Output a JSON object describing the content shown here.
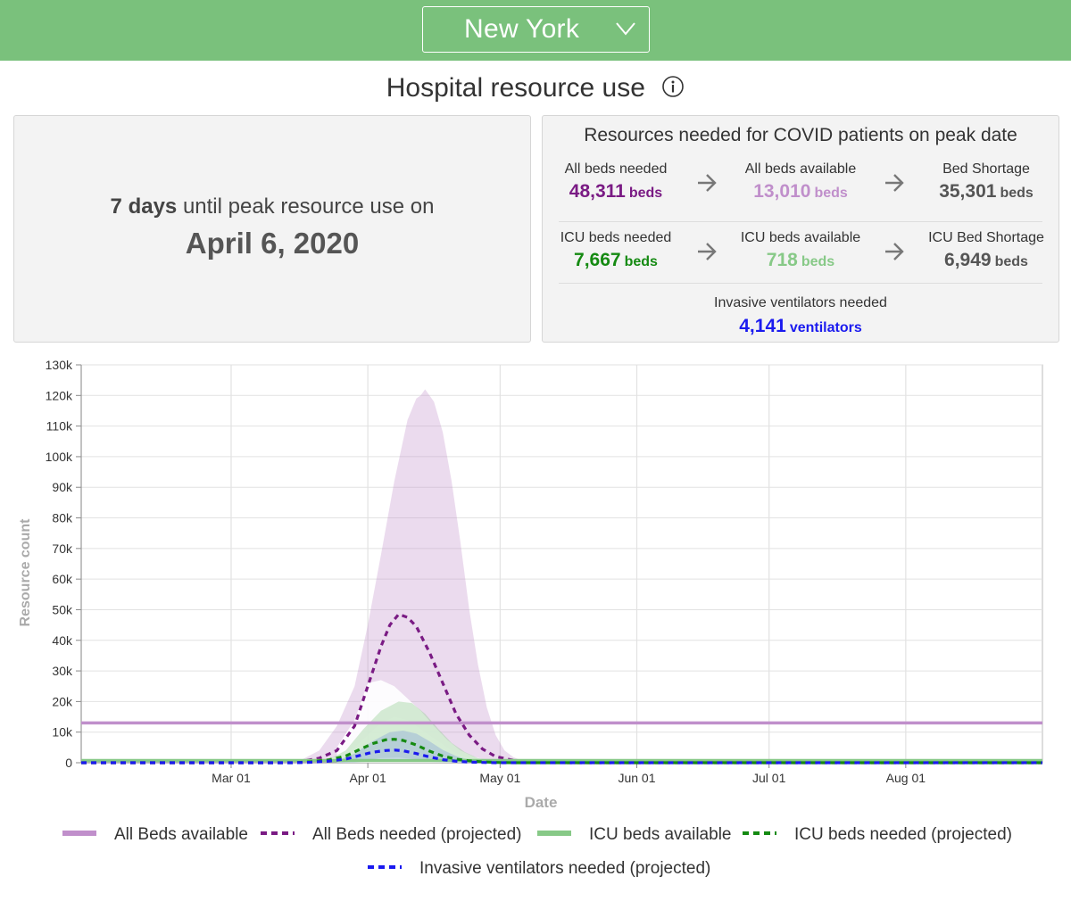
{
  "header": {
    "state": "New York",
    "section_title": "Hospital resource use"
  },
  "peak": {
    "days_count": "7 days",
    "days_suffix": "until peak resource use on",
    "date": "April 6, 2020"
  },
  "resources": {
    "title": "Resources needed for COVID patients on peak date",
    "all_beds_needed": {
      "label": "All beds needed",
      "value": "48,311",
      "unit": "beds"
    },
    "all_beds_available": {
      "label": "All beds available",
      "value": "13,010",
      "unit": "beds"
    },
    "bed_shortage": {
      "label": "Bed Shortage",
      "value": "35,301",
      "unit": "beds"
    },
    "icu_beds_needed": {
      "label": "ICU beds needed",
      "value": "7,667",
      "unit": "beds"
    },
    "icu_beds_available": {
      "label": "ICU beds available",
      "value": "718",
      "unit": "beds"
    },
    "icu_bed_shortage": {
      "label": "ICU Bed Shortage",
      "value": "6,949",
      "unit": "beds"
    },
    "ventilators": {
      "label": "Invasive ventilators needed",
      "value": "4,141",
      "unit": "ventilators"
    }
  },
  "colors": {
    "header_green": "#7ac17c",
    "all_beds_needed": "#7a1b84",
    "all_beds_available": "#c08fcb",
    "icu_needed": "#158a12",
    "icu_available": "#87c987",
    "ventilators": "#1a1aef"
  },
  "chart_data": {
    "type": "line",
    "title": "",
    "xlabel": "Date",
    "ylabel": "Resource count",
    "x_range_days": [
      -34,
      184
    ],
    "x_ticks": [
      {
        "label": "Mar 01",
        "day": 0
      },
      {
        "label": "Apr 01",
        "day": 31
      },
      {
        "label": "May 01",
        "day": 61
      },
      {
        "label": "Jun 01",
        "day": 92
      },
      {
        "label": "Jul 01",
        "day": 122
      },
      {
        "label": "Aug 01",
        "day": 153
      }
    ],
    "ylim": [
      0,
      130000
    ],
    "y_ticks": [
      {
        "value": 0,
        "label": "0"
      },
      {
        "value": 10000,
        "label": "10k"
      },
      {
        "value": 20000,
        "label": "20k"
      },
      {
        "value": 30000,
        "label": "30k"
      },
      {
        "value": 40000,
        "label": "40k"
      },
      {
        "value": 50000,
        "label": "50k"
      },
      {
        "value": 60000,
        "label": "60k"
      },
      {
        "value": 70000,
        "label": "70k"
      },
      {
        "value": 80000,
        "label": "80k"
      },
      {
        "value": 90000,
        "label": "90k"
      },
      {
        "value": 100000,
        "label": "100k"
      },
      {
        "value": 110000,
        "label": "110k"
      },
      {
        "value": 120000,
        "label": "120k"
      },
      {
        "value": 130000,
        "label": "130k"
      }
    ],
    "grid": true,
    "series": [
      {
        "name": "All Beds available",
        "style": "solid",
        "color": "#c08fcb",
        "x": [
          -34,
          184
        ],
        "y": [
          13010,
          13010
        ]
      },
      {
        "name": "All Beds needed (projected)",
        "style": "dashed",
        "color": "#7a1b84",
        "x": [
          -34,
          12,
          16,
          20,
          24,
          28,
          31,
          34,
          36,
          38,
          40,
          42,
          45,
          48,
          51,
          54,
          57,
          60,
          64,
          68,
          72,
          76,
          184
        ],
        "y": [
          0,
          0,
          500,
          1500,
          4000,
          12000,
          25000,
          38000,
          45000,
          48500,
          47500,
          44500,
          36000,
          26000,
          16000,
          9000,
          4500,
          2000,
          800,
          300,
          100,
          0,
          0
        ]
      },
      {
        "name": "ICU beds available",
        "style": "solid",
        "color": "#87c987",
        "x": [
          -34,
          184
        ],
        "y": [
          718,
          718
        ]
      },
      {
        "name": "ICU beds needed (projected)",
        "style": "dashed",
        "color": "#158a12",
        "x": [
          -34,
          14,
          18,
          22,
          26,
          29,
          32,
          35,
          37,
          39,
          42,
          45,
          48,
          51,
          54,
          57,
          60,
          64,
          184
        ],
        "y": [
          0,
          0,
          300,
          900,
          2200,
          4200,
          6200,
          7500,
          7667,
          7300,
          5800,
          3800,
          2200,
          1200,
          600,
          300,
          100,
          0,
          0
        ]
      },
      {
        "name": "Invasive ventilators needed (projected)",
        "style": "dashed",
        "color": "#1a1aef",
        "x": [
          -34,
          14,
          18,
          22,
          26,
          29,
          32,
          35,
          37,
          39,
          42,
          45,
          48,
          51,
          54,
          57,
          60,
          184
        ],
        "y": [
          0,
          0,
          150,
          500,
          1200,
          2300,
          3400,
          4000,
          4141,
          3900,
          3000,
          1900,
          1000,
          500,
          200,
          80,
          0,
          0
        ]
      }
    ],
    "bands": [
      {
        "name": "All Beds needed uncertainty",
        "color": "#c08fcb",
        "x": [
          16,
          20,
          24,
          28,
          31,
          34,
          37,
          40,
          42,
          43,
          44,
          46,
          48,
          50,
          52,
          54,
          56,
          58,
          60,
          62,
          64,
          66,
          70
        ],
        "upper": [
          1000,
          4000,
          12000,
          25000,
          45000,
          68000,
          92000,
          112000,
          119000,
          120000,
          122000,
          118000,
          108000,
          92000,
          72000,
          50000,
          32000,
          18000,
          9000,
          4000,
          1800,
          700,
          0
        ],
        "lower": [
          0,
          500,
          2000,
          5000,
          9000,
          13000,
          15000,
          14000,
          12000,
          11000,
          10000,
          8000,
          6000,
          4000,
          2500,
          1500,
          800,
          400,
          200,
          100,
          0,
          0,
          0
        ]
      },
      {
        "name": "All Beds needed lower-range highlight",
        "color": "#ffffff",
        "x": [
          24,
          28,
          31,
          34,
          37,
          40,
          43,
          46,
          49,
          52,
          55,
          58,
          62
        ],
        "upper": [
          5000,
          14000,
          26000,
          27000,
          25000,
          21000,
          17000,
          12000,
          7500,
          4000,
          2000,
          800,
          0
        ],
        "lower": [
          0,
          0,
          0,
          0,
          0,
          0,
          0,
          0,
          0,
          0,
          0,
          0,
          0
        ]
      },
      {
        "name": "ICU beds needed uncertainty",
        "color": "#87c987",
        "x": [
          22,
          26,
          30,
          34,
          38,
          41,
          44,
          47,
          50,
          53,
          56,
          60,
          64
        ],
        "upper": [
          1000,
          4000,
          11000,
          17000,
          20000,
          19500,
          16000,
          11000,
          6500,
          3500,
          1500,
          500,
          0
        ],
        "lower": [
          0,
          200,
          800,
          1500,
          1600,
          1300,
          900,
          500,
          300,
          100,
          0,
          0,
          0
        ]
      },
      {
        "name": "Ventilators needed uncertainty",
        "color": "#7f9bd9",
        "x": [
          24,
          28,
          32,
          36,
          39,
          42,
          45,
          48,
          51,
          54,
          58,
          62
        ],
        "upper": [
          600,
          3000,
          7000,
          10000,
          10500,
          9500,
          7000,
          4200,
          2200,
          1000,
          300,
          0
        ],
        "lower": [
          0,
          100,
          400,
          700,
          700,
          500,
          300,
          150,
          50,
          0,
          0,
          0
        ]
      }
    ],
    "legend": [
      {
        "label": "All Beds available",
        "style": "solid",
        "color": "#c08fcb"
      },
      {
        "label": "All Beds needed (projected)",
        "style": "dashed",
        "color": "#7a1b84"
      },
      {
        "label": "ICU beds available",
        "style": "solid",
        "color": "#87c987"
      },
      {
        "label": "ICU beds needed (projected)",
        "style": "dashed",
        "color": "#158a12"
      },
      {
        "label": "Invasive ventilators needed (projected)",
        "style": "dashed",
        "color": "#1a1aef"
      }
    ]
  }
}
